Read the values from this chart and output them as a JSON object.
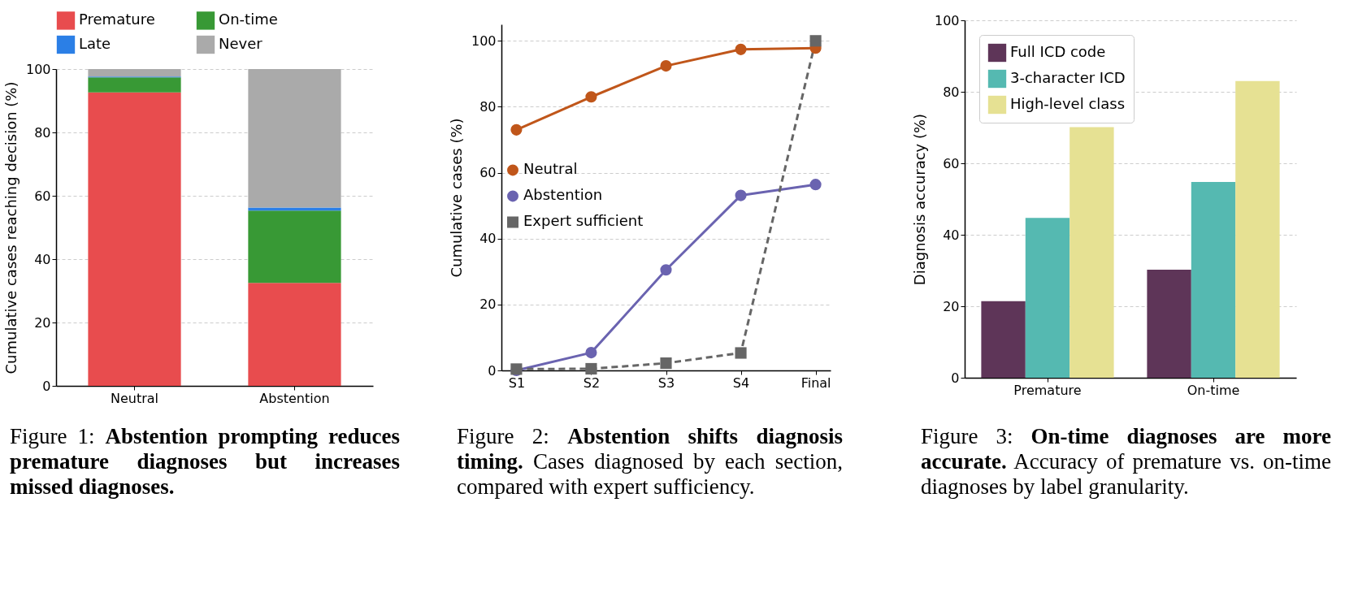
{
  "chart_data": [
    {
      "type": "bar",
      "stacked": true,
      "categories": [
        "Neutral",
        "Abstention"
      ],
      "ylabel": "Cumulative cases reaching decision (%)",
      "ylim": [
        0,
        100
      ],
      "yticks": [
        0,
        20,
        40,
        60,
        80,
        100
      ],
      "grid": "y",
      "legend": "top",
      "series": [
        {
          "name": "Premature",
          "color": "#e84c4e",
          "values": [
            92.6,
            32.5
          ]
        },
        {
          "name": "On-time",
          "color": "#389935",
          "values": [
            4.8,
            22.8
          ]
        },
        {
          "name": "Late",
          "color": "#2b7fe6",
          "values": [
            0.2,
            1.0
          ]
        },
        {
          "name": "Never",
          "color": "#aaaaaa",
          "values": [
            2.4,
            43.7
          ]
        }
      ],
      "annotations": [
        "Figure 1:",
        "Abstention prompting reduces premature diagnoses but increases missed diagnoses."
      ]
    },
    {
      "type": "line",
      "categories": [
        "S1",
        "S2",
        "S3",
        "S4",
        "Final"
      ],
      "ylabel": "Cumulative cases (%)",
      "ylim": [
        0,
        105
      ],
      "yticks": [
        0,
        20,
        40,
        60,
        80,
        100
      ],
      "grid": "y",
      "legend": "center left",
      "marker": "circle",
      "line_style": "solid",
      "series": [
        {
          "name": "Neutral",
          "color": "#c0561a",
          "values": [
            73.0,
            83.0,
            92.4,
            97.4,
            97.8
          ]
        },
        {
          "name": "Abstention",
          "color": "#6a63b0",
          "values": [
            0,
            5.4,
            30.5,
            53.1,
            56.4
          ]
        },
        {
          "name": "Expert sufficient",
          "color": "#666666",
          "marker": "square",
          "line_style": "dashed",
          "values": [
            0.4,
            0.5,
            2.2,
            5.3,
            100
          ]
        }
      ],
      "annotations": [
        "Figure 2:",
        "Abstention shifts diagnosis timing.",
        "Cases diagnosed by each section, compared with expert sufficiency."
      ]
    },
    {
      "type": "bar",
      "categories": [
        "Premature",
        "On-time"
      ],
      "ylabel": "Diagnosis accuracy (%)",
      "ylim": [
        0,
        100
      ],
      "yticks": [
        0,
        20,
        40,
        60,
        80,
        100
      ],
      "grid": "y",
      "legend": "top left",
      "series": [
        {
          "name": "Full ICD code",
          "color": "#5e3558",
          "values": [
            21.4,
            30.2
          ]
        },
        {
          "name": "3-character ICD",
          "color": "#55b9b1",
          "values": [
            44.7,
            54.8
          ]
        },
        {
          "name": "High-level class",
          "color": "#e6e193",
          "values": [
            70.1,
            83.0
          ]
        }
      ],
      "annotations": [
        "Figure 3:",
        "On-time diagnoses are more accurate.",
        "Accuracy of premature vs. on-time diagnoses by label granularity."
      ]
    }
  ]
}
